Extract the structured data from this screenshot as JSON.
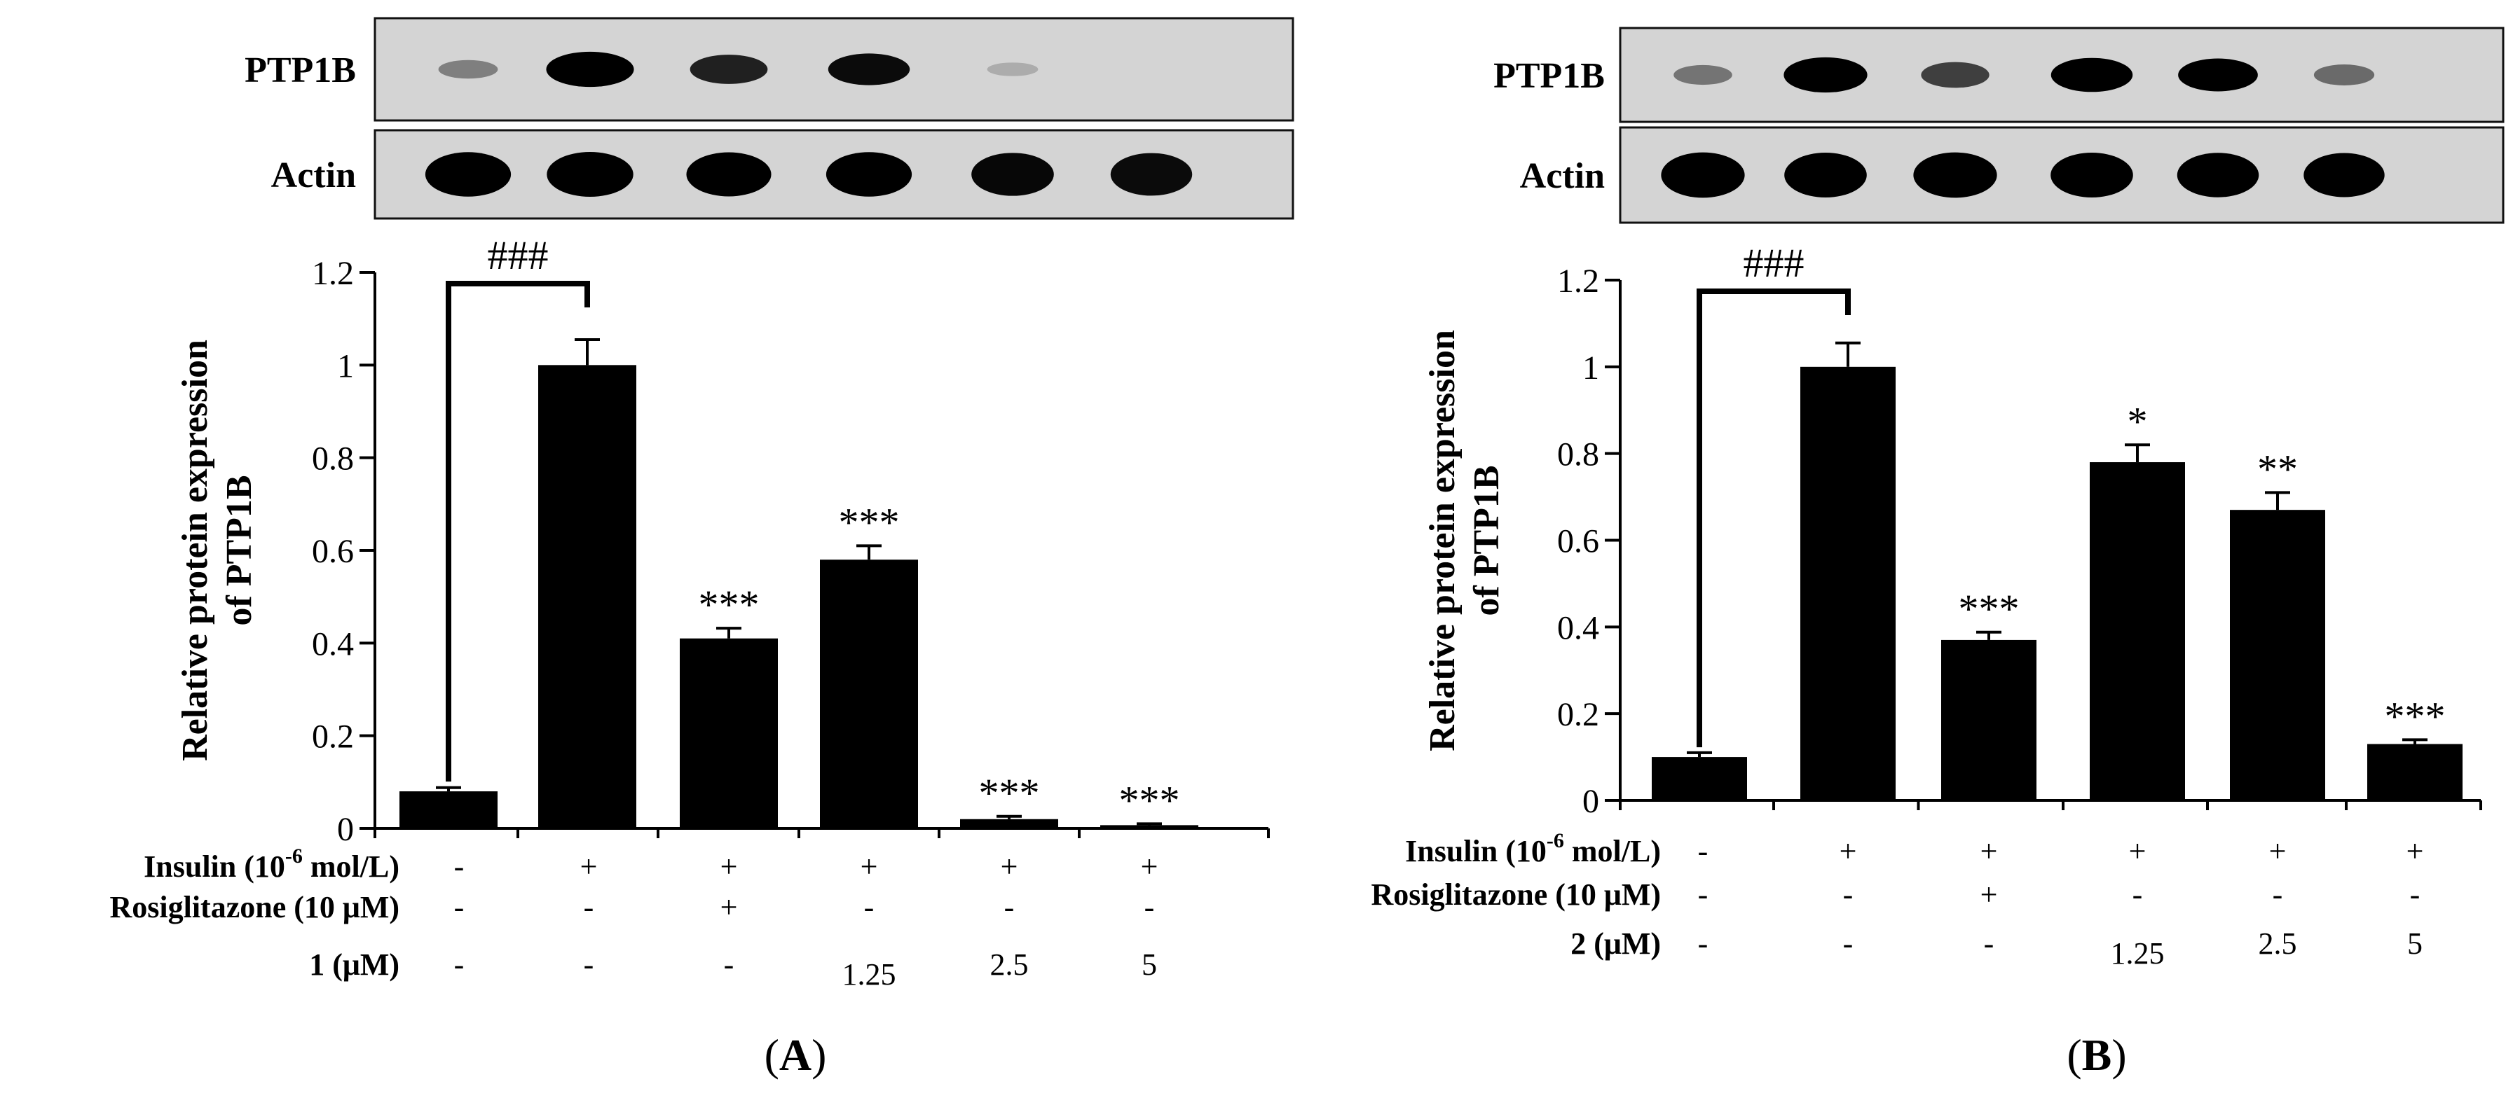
{
  "chart_data": [
    {
      "type": "bar",
      "panel_label": "A",
      "blot_labels": [
        "PTP1B",
        "Actin"
      ],
      "ylabel_lines": [
        "Relative protein expression",
        "of PTP1B"
      ],
      "ylim": [
        0,
        1.2
      ],
      "yticks": [
        "0",
        "0.2",
        "0.4",
        "0.6",
        "0.8",
        "1",
        "1.2"
      ],
      "values": [
        0.08,
        1.0,
        0.41,
        0.58,
        0.02,
        0.007
      ],
      "errors": [
        0.008,
        0.055,
        0.022,
        0.03,
        0.006,
        0.003
      ],
      "significance": [
        "",
        "",
        "***",
        "***",
        "***",
        "***"
      ],
      "comparison": {
        "from": 0,
        "to": 1,
        "label": "###"
      },
      "conditions": [
        {
          "label": "Insulin (10",
          "sup": "-6",
          "suffix": " mol/L)",
          "values": [
            "-",
            "+",
            "+",
            "+",
            "+",
            "+"
          ]
        },
        {
          "label": "Rosiglitazone (10 μM)",
          "values": [
            "-",
            "-",
            "+",
            "-",
            "-",
            "-"
          ]
        },
        {
          "label": "1 (μM)",
          "values": [
            "-",
            "-",
            "-",
            "1.25",
            "2.5",
            "5"
          ]
        }
      ],
      "ptp1b_band_intensity": [
        0.25,
        0.95,
        0.7,
        0.8,
        0.04,
        0.0
      ],
      "actin_band_intensity": [
        0.9,
        0.92,
        0.88,
        0.9,
        0.82,
        0.8
      ]
    },
    {
      "type": "bar",
      "panel_label": "B",
      "blot_labels": [
        "PTP1B",
        "Actin"
      ],
      "ylabel_lines": [
        "Relative protein expression",
        "of PTP1B"
      ],
      "ylim": [
        0,
        1.2
      ],
      "yticks": [
        "0",
        "0.2",
        "0.4",
        "0.6",
        "0.8",
        "1",
        "1.2"
      ],
      "values": [
        0.1,
        1.0,
        0.37,
        0.78,
        0.67,
        0.13
      ],
      "errors": [
        0.01,
        0.055,
        0.018,
        0.04,
        0.04,
        0.01
      ],
      "significance": [
        "",
        "",
        "***",
        "*",
        "**",
        "***"
      ],
      "comparison": {
        "from": 0,
        "to": 1,
        "label": "###"
      },
      "conditions": [
        {
          "label": "Insulin (10",
          "sup": "-6",
          "suffix": " mol/L)",
          "values": [
            "-",
            "+",
            "+",
            "+",
            "+",
            "+"
          ]
        },
        {
          "label": "Rosiglitazone (10 μM)",
          "values": [
            "-",
            "-",
            "+",
            "-",
            "-",
            "-"
          ]
        },
        {
          "label": "2 (μM)",
          "values": [
            "-",
            "-",
            "-",
            "1.25",
            "2.5",
            "5"
          ]
        }
      ],
      "ptp1b_band_intensity": [
        0.3,
        0.95,
        0.55,
        0.9,
        0.85,
        0.35
      ],
      "actin_band_intensity": [
        0.95,
        0.92,
        0.95,
        0.92,
        0.9,
        0.88
      ]
    }
  ]
}
